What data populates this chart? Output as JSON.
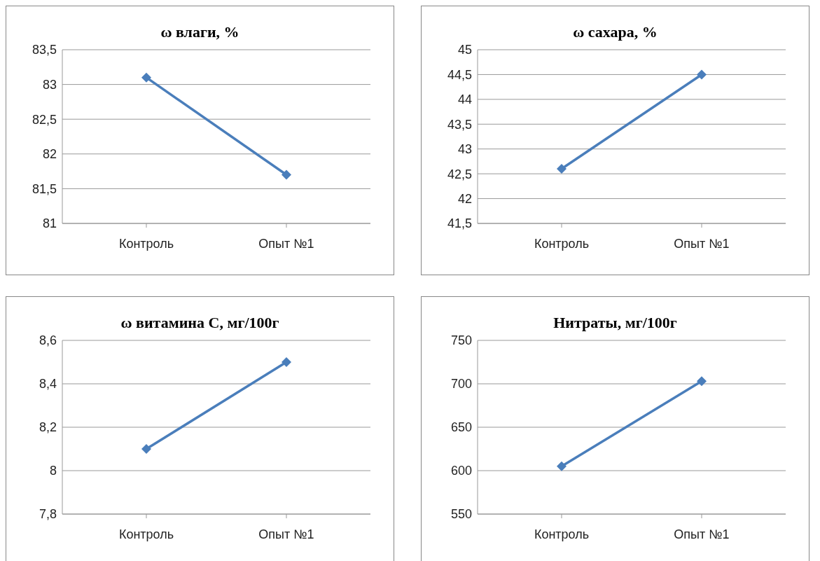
{
  "chart_data": [
    {
      "type": "line",
      "title": "ω влаги, %",
      "categories": [
        "Контроль",
        "Опыт №1"
      ],
      "series": [
        {
          "color": "#4a7ebb",
          "values": [
            83.1,
            81.7
          ]
        }
      ],
      "ylim": [
        81,
        83.5
      ],
      "yticks": [
        {
          "value": 81,
          "label": "81"
        },
        {
          "value": 81.5,
          "label": "81,5"
        },
        {
          "value": 82,
          "label": "82"
        },
        {
          "value": 82.5,
          "label": "82,5"
        },
        {
          "value": 83,
          "label": "83"
        },
        {
          "value": 83.5,
          "label": "83,5"
        }
      ],
      "grid": "y",
      "marker": "diamond",
      "legend": false
    },
    {
      "type": "line",
      "title": "ω сахара, %",
      "categories": [
        "Контроль",
        "Опыт №1"
      ],
      "series": [
        {
          "color": "#4a7ebb",
          "values": [
            42.6,
            44.5
          ]
        }
      ],
      "ylim": [
        41.5,
        45
      ],
      "yticks": [
        {
          "value": 41.5,
          "label": "41,5"
        },
        {
          "value": 42,
          "label": "42"
        },
        {
          "value": 42.5,
          "label": "42,5"
        },
        {
          "value": 43,
          "label": "43"
        },
        {
          "value": 43.5,
          "label": "43,5"
        },
        {
          "value": 44,
          "label": "44"
        },
        {
          "value": 44.5,
          "label": "44,5"
        },
        {
          "value": 45,
          "label": "45"
        }
      ],
      "grid": "y",
      "marker": "diamond",
      "legend": false
    },
    {
      "type": "line",
      "title": "ω витамина С, мг/100г",
      "categories": [
        "Контроль",
        "Опыт №1"
      ],
      "series": [
        {
          "color": "#4a7ebb",
          "values": [
            8.1,
            8.5
          ]
        }
      ],
      "ylim": [
        7.8,
        8.6
      ],
      "yticks": [
        {
          "value": 7.8,
          "label": "7,8"
        },
        {
          "value": 8,
          "label": "8"
        },
        {
          "value": 8.2,
          "label": "8,2"
        },
        {
          "value": 8.4,
          "label": "8,4"
        },
        {
          "value": 8.6,
          "label": "8,6"
        }
      ],
      "grid": "y",
      "marker": "diamond",
      "legend": false
    },
    {
      "type": "line",
      "title": "Нитраты, мг/100г",
      "categories": [
        "Контроль",
        "Опыт №1"
      ],
      "series": [
        {
          "color": "#4a7ebb",
          "values": [
            605,
            703
          ]
        }
      ],
      "ylim": [
        550,
        750
      ],
      "yticks": [
        550,
        600,
        650,
        700,
        750
      ],
      "grid": "y",
      "marker": "diamond",
      "legend": false
    }
  ]
}
